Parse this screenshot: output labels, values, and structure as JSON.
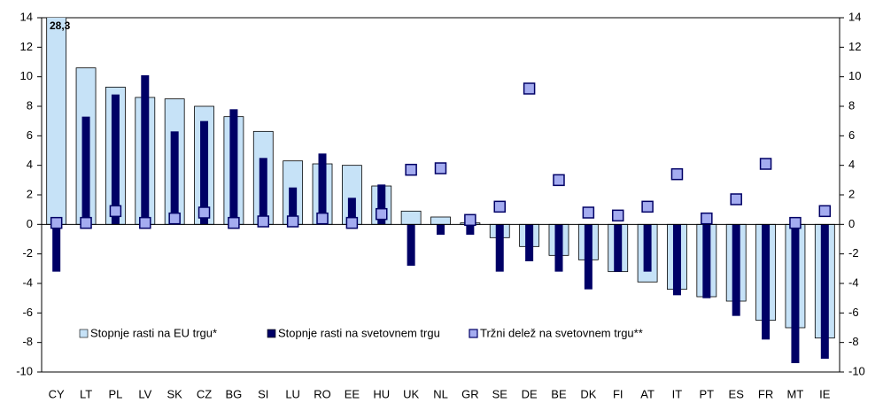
{
  "chart_data": {
    "type": "bar",
    "categories": [
      "CY",
      "LT",
      "PL",
      "LV",
      "SK",
      "CZ",
      "BG",
      "SI",
      "LU",
      "RO",
      "EE",
      "HU",
      "UK",
      "NL",
      "GR",
      "SE",
      "DE",
      "BE",
      "DK",
      "FI",
      "AT",
      "IT",
      "PT",
      "ES",
      "FR",
      "MT",
      "IE"
    ],
    "series": [
      {
        "name": "Stopnje rasti na EU trgu*",
        "color": "#c6e2f7",
        "values": [
          28.3,
          10.6,
          9.3,
          8.6,
          8.5,
          8.0,
          7.3,
          6.3,
          4.3,
          4.1,
          4.0,
          2.6,
          0.9,
          0.5,
          0.1,
          -0.9,
          -1.5,
          -2.1,
          -2.4,
          -3.2,
          -3.9,
          -4.4,
          -4.9,
          -5.2,
          -6.5,
          -7.0,
          -7.7
        ],
        "value_labels": [
          "28,3",
          null,
          null,
          null,
          null,
          null,
          null,
          null,
          null,
          null,
          null,
          null,
          null,
          null,
          null,
          null,
          null,
          null,
          null,
          null,
          null,
          null,
          null,
          null,
          null,
          null,
          null
        ]
      },
      {
        "name": "Stopnje rasti na svetovnem trgu",
        "color": "#000066",
        "values": [
          -3.2,
          7.3,
          8.8,
          10.1,
          6.3,
          7.0,
          7.8,
          4.5,
          2.5,
          4.8,
          1.8,
          2.7,
          -2.8,
          -0.7,
          -0.7,
          -3.2,
          -2.5,
          -3.2,
          -4.4,
          -3.2,
          -3.2,
          -4.8,
          -5.0,
          -6.2,
          -7.8,
          -9.4,
          -9.1
        ]
      },
      {
        "name": "Tržni delež na svetovnem trgu**",
        "color": "#a4acf0",
        "values": [
          0.1,
          0.1,
          0.9,
          0.1,
          0.4,
          0.8,
          0.1,
          0.2,
          0.2,
          0.4,
          0.1,
          0.7,
          3.7,
          3.8,
          0.3,
          1.2,
          9.2,
          3.0,
          0.8,
          0.6,
          1.2,
          3.4,
          0.4,
          1.7,
          4.1,
          0.1,
          0.9
        ]
      }
    ],
    "ylim": [
      -10,
      14
    ],
    "yticks": [
      -10,
      -8,
      -6,
      -4,
      -2,
      0,
      2,
      4,
      6,
      8,
      10,
      12,
      14
    ],
    "y2lim": [
      -10,
      14
    ],
    "y2ticks": [
      -10,
      -8,
      -6,
      -4,
      -2,
      0,
      2,
      4,
      6,
      8,
      10,
      12,
      14
    ],
    "grid": false
  }
}
